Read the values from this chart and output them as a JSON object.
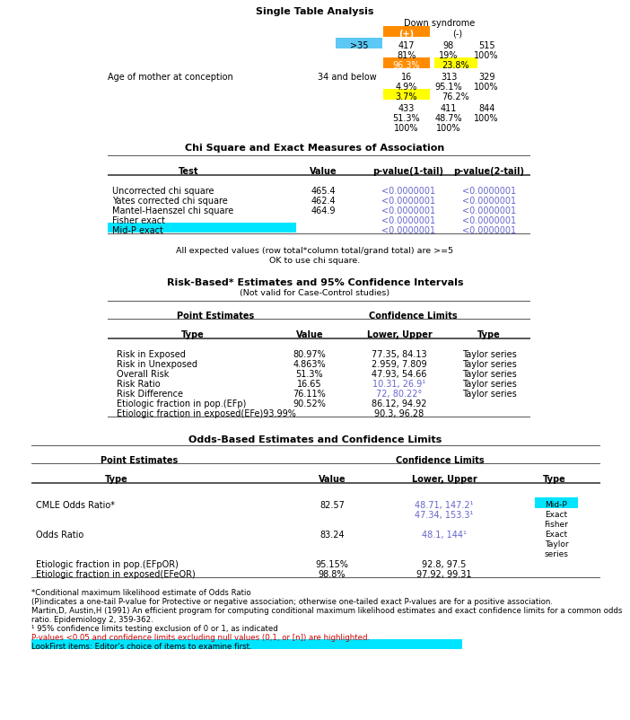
{
  "title": "Single Table Analysis",
  "bg_color": "#ffffff",
  "cyan": "#00e5ff",
  "orange": "#ff8c00",
  "yellow": "#ffff00",
  "light_blue": "#5bc8f5",
  "purple": "#6666cc",
  "red": "#cc0000",
  "black": "#000000",
  "section1": {
    "title": "Single Table Analysis",
    "ds_label": "Down syndrome",
    "col_plus": "(+)",
    "col_minus": "(-)",
    "row1_label": ">35",
    "row1_vals": [
      "417",
      "98",
      "515"
    ],
    "row1_pcts": [
      "81%",
      "19%",
      "100%"
    ],
    "row1_col_pcts": [
      "96.3%",
      "23.8%"
    ],
    "row2_label_a": "Age of mother at conception",
    "row2_label_b": "34 and below",
    "row2_vals": [
      "16",
      "313",
      "329"
    ],
    "row2_pcts": [
      "4.9%",
      "95.1%",
      "100%"
    ],
    "row2_col_pcts": [
      "3.7%",
      "76.2%"
    ],
    "total_vals": [
      "433",
      "411",
      "844"
    ],
    "total_pcts": [
      "51.3%",
      "48.7%",
      "100%"
    ],
    "total_col_pcts": [
      "100%",
      "100%"
    ]
  },
  "section2": {
    "title": "Chi Square and Exact Measures of Association",
    "headers": [
      "Test",
      "Value",
      "p-value(1-tail)",
      "p-value(2-tail)"
    ],
    "rows": [
      [
        "Uncorrected chi square",
        "465.4",
        "<0.0000001",
        "<0.0000001"
      ],
      [
        "Yates corrected chi square",
        "462.4",
        "<0.0000001",
        "<0.0000001"
      ],
      [
        "Mantel-Haenszel chi square",
        "464.9",
        "<0.0000001",
        "<0.0000001"
      ],
      [
        "Fisher exact",
        "",
        "<0.0000001",
        "<0.0000001"
      ],
      [
        "Mid-P exact",
        "",
        "<0.0000001",
        "<0.0000001"
      ]
    ],
    "note1": "All expected values (row total*column total/grand total) are >=5",
    "note2": "OK to use chi square."
  },
  "section3": {
    "title": "Risk-Based* Estimates and 95% Confidence Intervals",
    "subtitle": "(Not valid for Case-Control studies)",
    "rows": [
      [
        "Risk in Exposed",
        "80.97%",
        "77.35, 84.13",
        "Taylor series",
        false
      ],
      [
        "Risk in Unexposed",
        "4.863%",
        "2.959, 7.809",
        "Taylor series",
        false
      ],
      [
        "Overall Risk",
        "51.3%",
        "47.93, 54.66",
        "Taylor series",
        false
      ],
      [
        "Risk Ratio",
        "16.65",
        "10.31, 26.9¹",
        "Taylor series",
        true
      ],
      [
        "Risk Difference",
        "76.11%",
        "72, 80.22°",
        "Taylor series",
        true
      ],
      [
        "Etiologic fraction in pop.(EFp)",
        "90.52%",
        "86.12, 94.92",
        "",
        false
      ],
      [
        "Etiologic fraction in exposed(EFe)93.99%",
        "",
        "90.3, 96.28",
        "",
        false
      ]
    ]
  },
  "section4": {
    "title": "Odds-Based Estimates and Confidence Limits"
  },
  "footnotes": [
    [
      "*Conditional maximum likelihood estimate of Odds Ratio",
      "black"
    ],
    [
      "(P)indicates a one-tail P-value for Protective or negative association; otherwise one-tailed exact P-values are for a positive association.",
      "black"
    ],
    [
      "Martin,D, Austin,H (1991) An efficient program for computing conditional maximum likelihood estimates and exact confidence limits for a common odds",
      "black"
    ],
    [
      "ratio. Epidemiology 2, 359-362.",
      "black"
    ],
    [
      "¹ 95% confidence limits testing exclusion of 0 or 1, as indicated",
      "black"
    ],
    [
      "P-values <0.05 and confidence limits excluding null values (0,1, or [n]) are highlighted.",
      "red"
    ],
    [
      "LookFirst items: Editor’s choice of items to examine first.",
      "cyan_bg"
    ]
  ]
}
